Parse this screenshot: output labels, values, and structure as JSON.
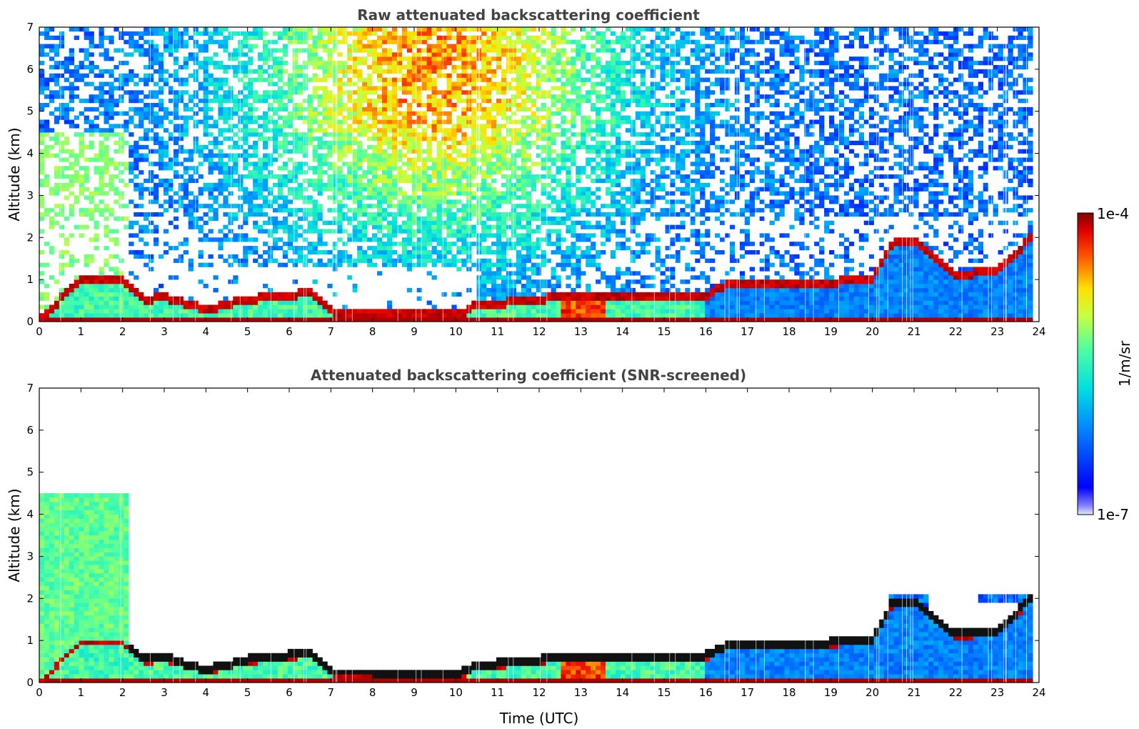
{
  "chart_data": [
    {
      "type": "heatmap",
      "title": "Raw attenuated backscattering coefficient",
      "xlabel": "",
      "ylabel": "Altitude (km)",
      "xlim": [
        0,
        24
      ],
      "ylim": [
        0,
        7
      ],
      "xticks": [
        "0",
        "1",
        "2",
        "3",
        "4",
        "5",
        "6",
        "7",
        "8",
        "9",
        "10",
        "11",
        "12",
        "13",
        "14",
        "15",
        "16",
        "17",
        "18",
        "19",
        "20",
        "21",
        "22",
        "23",
        "24"
      ],
      "yticks": [
        "0",
        "1",
        "2",
        "3",
        "4",
        "5",
        "6",
        "7"
      ],
      "boundary_layer_top_km": {
        "time_utc": [
          0,
          1,
          2,
          2.5,
          3,
          4,
          5,
          6,
          6.5,
          7,
          8,
          9,
          10,
          10.5,
          11,
          12,
          13,
          14,
          15,
          16,
          16.5,
          17,
          18,
          19,
          20,
          20.5,
          21,
          22,
          23,
          23.8
        ],
        "altitude": [
          0.05,
          1.05,
          1.0,
          0.55,
          0.6,
          0.3,
          0.55,
          0.65,
          0.7,
          0.25,
          0.25,
          0.22,
          0.18,
          0.4,
          0.45,
          0.55,
          0.65,
          0.6,
          0.6,
          0.65,
          0.9,
          0.95,
          0.95,
          0.95,
          1.05,
          1.95,
          1.95,
          1.15,
          1.2,
          2.0
        ]
      },
      "colorbar": {
        "label": "1/m/sr",
        "min": "1e-7",
        "max": "1e-4",
        "colormap": "jet",
        "scale": "log"
      }
    },
    {
      "type": "heatmap",
      "title": "Attenuated backscattering coefficient (SNR-screened)",
      "xlabel": "Time (UTC)",
      "ylabel": "Altitude (km)",
      "xlim": [
        0,
        24
      ],
      "ylim": [
        0,
        7
      ],
      "xticks": [
        "0",
        "1",
        "2",
        "3",
        "4",
        "5",
        "6",
        "7",
        "8",
        "9",
        "10",
        "11",
        "12",
        "13",
        "14",
        "15",
        "16",
        "17",
        "18",
        "19",
        "20",
        "21",
        "22",
        "23",
        "24"
      ],
      "yticks": [
        "0",
        "1",
        "2",
        "3",
        "4",
        "5",
        "6",
        "7"
      ]
    }
  ],
  "colorbar": {
    "label": "1/m/sr",
    "max_label": "1e-4",
    "min_label": "1e-7"
  }
}
